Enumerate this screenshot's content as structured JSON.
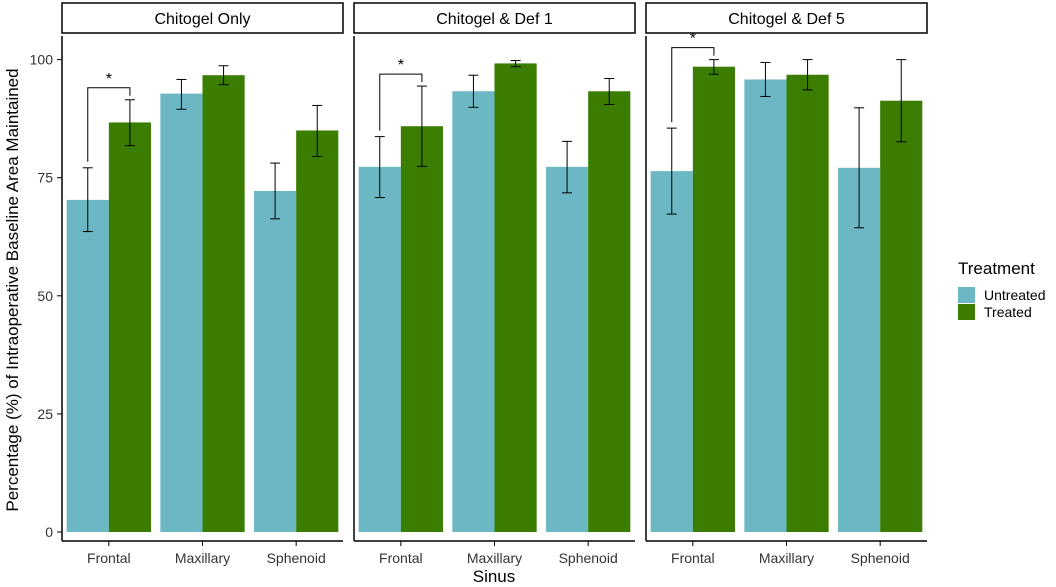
{
  "chart_data": {
    "type": "bar",
    "facets": [
      "Chitogel Only",
      "Chitogel & Def 1",
      "Chitogel & Def 5"
    ],
    "categories": [
      "Frontal",
      "Maxillary",
      "Sphenoid"
    ],
    "series": [
      {
        "name": "Untreated",
        "color": "#6bb8c4",
        "values": [
          [
            70.3,
            92.8,
            72.2
          ],
          [
            77.3,
            93.3,
            77.3
          ],
          [
            76.4,
            95.8,
            77.1
          ]
        ],
        "error_low": [
          [
            63.6,
            89.5,
            66.3
          ],
          [
            70.8,
            89.9,
            71.8
          ],
          [
            67.3,
            92.2,
            64.4
          ]
        ],
        "error_high": [
          [
            77.1,
            95.8,
            78.1
          ],
          [
            83.7,
            96.7,
            82.7
          ],
          [
            85.5,
            99.4,
            89.8
          ]
        ]
      },
      {
        "name": "Treated",
        "color": "#3a7d00",
        "values": [
          [
            86.7,
            96.7,
            85.0
          ],
          [
            85.9,
            99.2,
            93.3
          ],
          [
            98.5,
            96.8,
            91.3
          ]
        ],
        "error_low": [
          [
            81.8,
            94.7,
            79.5
          ],
          [
            77.4,
            98.5,
            90.5
          ],
          [
            96.9,
            93.6,
            82.6
          ]
        ],
        "error_high": [
          [
            91.5,
            98.7,
            90.3
          ],
          [
            94.4,
            99.8,
            96.0
          ],
          [
            100.0,
            100.0,
            100.0
          ]
        ]
      }
    ],
    "significance": [
      {
        "facet": 0,
        "category": 0,
        "label": "*"
      },
      {
        "facet": 1,
        "category": 0,
        "label": "*"
      },
      {
        "facet": 2,
        "category": 0,
        "label": "*"
      }
    ],
    "xlabel": "Sinus",
    "ylabel": "Percentage (%) of Intraoperative Baseline Area Maintained",
    "ylim": [
      0,
      105
    ],
    "yticks": [
      0,
      25,
      50,
      75,
      100
    ],
    "legend_title": "Treatment",
    "legend_position": "right",
    "grid": false
  }
}
